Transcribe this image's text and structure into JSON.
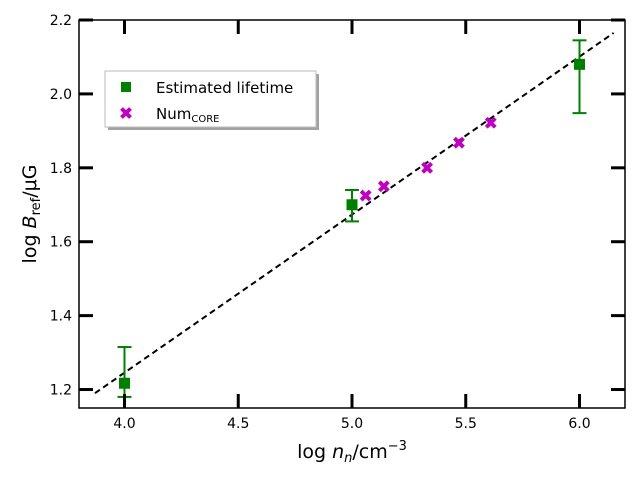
{
  "chart_data": {
    "type": "scatter",
    "xlabel": {
      "prefix": "log ",
      "var": "n",
      "sub": "n",
      "unit": "/cm",
      "sup": "−3"
    },
    "ylabel": {
      "prefix": "log ",
      "var": "B",
      "sub": "ref",
      "unit": "/μG"
    },
    "xlim": [
      3.8,
      6.2
    ],
    "ylim": [
      1.15,
      2.2
    ],
    "xticks": [
      4.0,
      4.5,
      5.0,
      5.5,
      6.0
    ],
    "xtick_labels": [
      "4.0",
      "4.5",
      "5.0",
      "5.5",
      "6.0"
    ],
    "yticks": [
      1.2,
      1.4,
      1.6,
      1.8,
      2.0,
      2.2
    ],
    "ytick_labels": [
      "1.2",
      "1.4",
      "1.6",
      "1.8",
      "2.0",
      "2.2"
    ],
    "legend_position": "upper-left",
    "grid": false,
    "series": [
      {
        "name": "Estimated lifetime",
        "marker": "square",
        "color": "#008000",
        "points": [
          {
            "x": 4.0,
            "y": 1.217,
            "yerr_low": 1.18,
            "yerr_high": 1.315
          },
          {
            "x": 5.0,
            "y": 1.7,
            "yerr_low": 1.655,
            "yerr_high": 1.74
          },
          {
            "x": 6.0,
            "y": 2.08,
            "yerr_low": 1.948,
            "yerr_high": 2.145
          }
        ]
      },
      {
        "name": "Num",
        "name_sub": "CORE",
        "marker": "x",
        "color": "#c000c0",
        "points": [
          {
            "x": 5.06,
            "y": 1.725
          },
          {
            "x": 5.14,
            "y": 1.75
          },
          {
            "x": 5.33,
            "y": 1.8
          },
          {
            "x": 5.47,
            "y": 1.868
          },
          {
            "x": 5.61,
            "y": 1.922
          }
        ]
      }
    ],
    "fit_line": {
      "style": "dashed",
      "color": "#000000",
      "points": [
        {
          "x": 3.87,
          "y": 1.19
        },
        {
          "x": 6.15,
          "y": 2.165
        }
      ]
    }
  }
}
